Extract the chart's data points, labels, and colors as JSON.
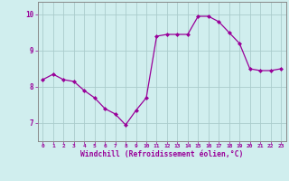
{
  "x": [
    0,
    1,
    2,
    3,
    4,
    5,
    6,
    7,
    8,
    9,
    10,
    11,
    12,
    13,
    14,
    15,
    16,
    17,
    18,
    19,
    20,
    21,
    22,
    23
  ],
  "y": [
    8.2,
    8.35,
    8.2,
    8.15,
    7.9,
    7.7,
    7.4,
    7.25,
    6.95,
    7.35,
    7.7,
    9.4,
    9.45,
    9.45,
    9.45,
    9.95,
    9.95,
    9.8,
    9.5,
    9.2,
    8.5,
    8.45,
    8.45,
    8.5
  ],
  "line_color": "#990099",
  "marker": "D",
  "marker_size": 2,
  "bg_color": "#d0eeee",
  "grid_color": "#aacccc",
  "xlabel": "Windchill (Refroidissement éolien,°C)",
  "xlabel_color": "#990099",
  "tick_color": "#990099",
  "spine_color": "#888888",
  "ylim": [
    6.5,
    10.35
  ],
  "xlim": [
    -0.5,
    23.5
  ],
  "yticks": [
    7,
    8,
    9,
    10
  ],
  "xticks": [
    0,
    1,
    2,
    3,
    4,
    5,
    6,
    7,
    8,
    9,
    10,
    11,
    12,
    13,
    14,
    15,
    16,
    17,
    18,
    19,
    20,
    21,
    22,
    23
  ]
}
